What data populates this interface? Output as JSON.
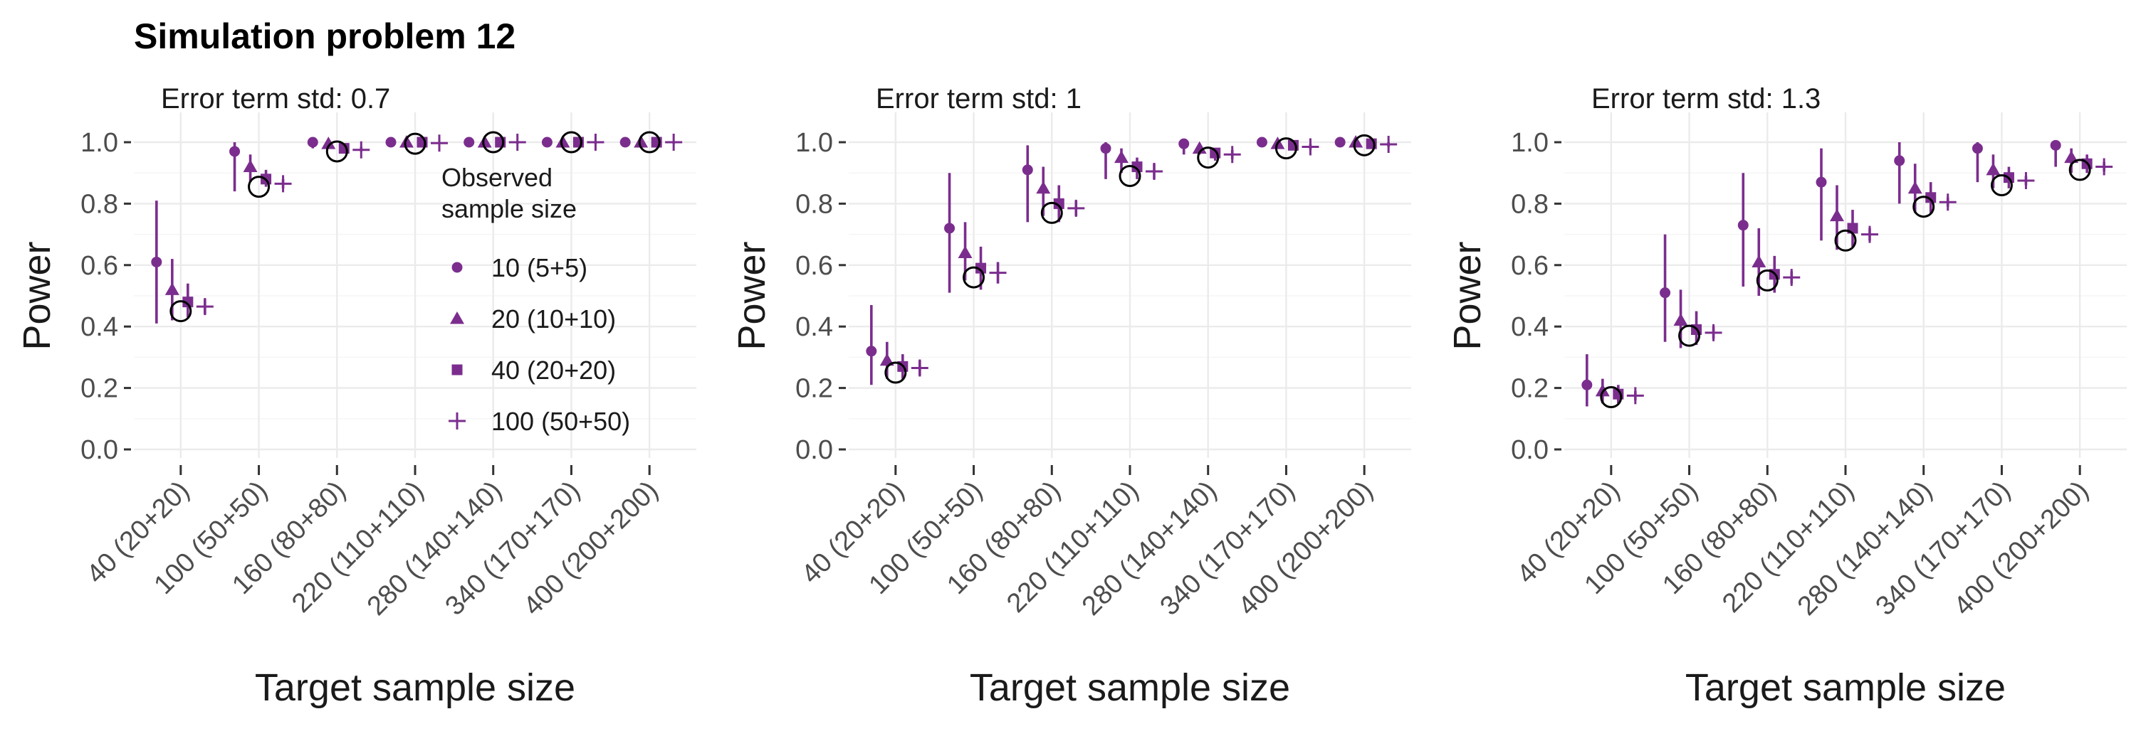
{
  "title": "Simulation problem 12",
  "colors": {
    "series": "#7b2d8e",
    "truth": "#000000",
    "grid": "#ebebeb"
  },
  "legend": {
    "title_line1": "Observed",
    "title_line2": "sample size",
    "placement": "inside first panel, right",
    "items": [
      {
        "label": "10 (5+5)",
        "shape": "circle"
      },
      {
        "label": "20 (10+10)",
        "shape": "triangle"
      },
      {
        "label": "40 (20+20)",
        "shape": "square"
      },
      {
        "label": "100 (50+50)",
        "shape": "plus"
      }
    ]
  },
  "chart_data": [
    {
      "type": "scatter",
      "subtitle": "Error term std: 0.7",
      "xlabel": "Target sample size",
      "ylabel": "Power",
      "ylim": [
        0,
        1
      ],
      "yticks": [
        "0.0",
        "0.2",
        "0.4",
        "0.6",
        "0.8",
        "1.0"
      ],
      "categories": [
        "40 (20+20)",
        "100 (50+50)",
        "160 (80+80)",
        "220 (110+110)",
        "280 (140+140)",
        "340 (170+170)",
        "400 (200+200)"
      ],
      "truth": [
        0.45,
        0.855,
        0.97,
        0.995,
        1.0,
        1.0,
        1.0
      ],
      "series": [
        {
          "name": "10 (5+5)",
          "values": [
            0.61,
            0.97,
            1.0,
            1.0,
            1.0,
            1.0,
            1.0
          ],
          "lower": [
            0.41,
            0.84,
            0.98,
            0.99,
            0.995,
            0.995,
            0.995
          ],
          "upper": [
            0.81,
            1.0,
            1.0,
            1.0,
            1.0,
            1.0,
            1.0
          ]
        },
        {
          "name": "20 (10+10)",
          "values": [
            0.52,
            0.92,
            0.995,
            1.0,
            1.0,
            1.0,
            1.0
          ],
          "lower": [
            0.42,
            0.87,
            0.98,
            0.995,
            0.995,
            0.995,
            0.995
          ],
          "upper": [
            0.62,
            0.96,
            1.0,
            1.0,
            1.0,
            1.0,
            1.0
          ]
        },
        {
          "name": "40 (20+20)",
          "values": [
            0.48,
            0.88,
            0.98,
            1.0,
            1.0,
            1.0,
            1.0
          ],
          "lower": [
            0.43,
            0.855,
            0.97,
            0.995,
            0.995,
            0.995,
            0.995
          ],
          "upper": [
            0.54,
            0.91,
            0.99,
            1.0,
            1.0,
            1.0,
            1.0
          ]
        },
        {
          "name": "100 (50+50)",
          "values": [
            0.465,
            0.865,
            0.975,
            0.997,
            1.0,
            1.0,
            1.0
          ],
          "lower": [
            0.44,
            0.85,
            0.97,
            0.995,
            0.995,
            0.995,
            0.995
          ],
          "upper": [
            0.49,
            0.88,
            0.985,
            1.0,
            1.0,
            1.0,
            1.0
          ]
        }
      ]
    },
    {
      "type": "scatter",
      "subtitle": "Error term std: 1",
      "xlabel": "Target sample size",
      "ylabel": "Power",
      "ylim": [
        0,
        1
      ],
      "yticks": [
        "0.0",
        "0.2",
        "0.4",
        "0.6",
        "0.8",
        "1.0"
      ],
      "categories": [
        "40 (20+20)",
        "100 (50+50)",
        "160 (80+80)",
        "220 (110+110)",
        "280 (140+140)",
        "340 (170+170)",
        "400 (200+200)"
      ],
      "truth": [
        0.25,
        0.56,
        0.77,
        0.89,
        0.95,
        0.98,
        0.99
      ],
      "series": [
        {
          "name": "10 (5+5)",
          "values": [
            0.32,
            0.72,
            0.91,
            0.98,
            0.995,
            1.0,
            1.0
          ],
          "lower": [
            0.21,
            0.51,
            0.74,
            0.88,
            0.96,
            0.99,
            0.995
          ],
          "upper": [
            0.47,
            0.9,
            0.99,
            1.0,
            1.0,
            1.0,
            1.0
          ]
        },
        {
          "name": "20 (10+10)",
          "values": [
            0.29,
            0.64,
            0.85,
            0.95,
            0.98,
            0.995,
            1.0
          ],
          "lower": [
            0.23,
            0.55,
            0.76,
            0.9,
            0.96,
            0.98,
            0.99
          ],
          "upper": [
            0.35,
            0.74,
            0.92,
            0.98,
            0.99,
            1.0,
            1.0
          ]
        },
        {
          "name": "40 (20+20)",
          "values": [
            0.27,
            0.59,
            0.8,
            0.92,
            0.965,
            0.99,
            0.995
          ],
          "lower": [
            0.23,
            0.52,
            0.74,
            0.88,
            0.94,
            0.975,
            0.985
          ],
          "upper": [
            0.31,
            0.66,
            0.86,
            0.95,
            0.98,
            0.995,
            1.0
          ]
        },
        {
          "name": "100 (50+50)",
          "values": [
            0.265,
            0.575,
            0.785,
            0.905,
            0.96,
            0.985,
            0.993
          ],
          "lower": [
            0.24,
            0.54,
            0.76,
            0.88,
            0.945,
            0.975,
            0.985
          ],
          "upper": [
            0.29,
            0.61,
            0.81,
            0.93,
            0.975,
            0.995,
            1.0
          ]
        }
      ]
    },
    {
      "type": "scatter",
      "subtitle": "Error term std: 1.3",
      "xlabel": "Target sample size",
      "ylabel": "Power",
      "ylim": [
        0,
        1
      ],
      "yticks": [
        "0.0",
        "0.2",
        "0.4",
        "0.6",
        "0.8",
        "1.0"
      ],
      "categories": [
        "40 (20+20)",
        "100 (50+50)",
        "160 (80+80)",
        "220 (110+110)",
        "280 (140+140)",
        "340 (170+170)",
        "400 (200+200)"
      ],
      "truth": [
        0.17,
        0.37,
        0.55,
        0.68,
        0.79,
        0.86,
        0.91
      ],
      "series": [
        {
          "name": "10 (5+5)",
          "values": [
            0.21,
            0.51,
            0.73,
            0.87,
            0.94,
            0.98,
            0.99
          ],
          "lower": [
            0.14,
            0.35,
            0.53,
            0.68,
            0.8,
            0.87,
            0.92
          ],
          "upper": [
            0.31,
            0.7,
            0.9,
            0.98,
            1.0,
            1.0,
            1.0
          ]
        },
        {
          "name": "20 (10+10)",
          "values": [
            0.19,
            0.42,
            0.61,
            0.76,
            0.85,
            0.91,
            0.95
          ],
          "lower": [
            0.15,
            0.33,
            0.5,
            0.65,
            0.77,
            0.85,
            0.9
          ],
          "upper": [
            0.23,
            0.52,
            0.72,
            0.86,
            0.93,
            0.96,
            0.98
          ]
        },
        {
          "name": "40 (20+20)",
          "values": [
            0.18,
            0.39,
            0.57,
            0.72,
            0.82,
            0.885,
            0.93
          ],
          "lower": [
            0.15,
            0.34,
            0.51,
            0.66,
            0.77,
            0.85,
            0.9
          ],
          "upper": [
            0.21,
            0.45,
            0.63,
            0.78,
            0.87,
            0.92,
            0.96
          ]
        },
        {
          "name": "100 (50+50)",
          "values": [
            0.175,
            0.38,
            0.56,
            0.7,
            0.805,
            0.875,
            0.92
          ],
          "lower": [
            0.16,
            0.36,
            0.54,
            0.68,
            0.79,
            0.86,
            0.905
          ],
          "upper": [
            0.19,
            0.4,
            0.58,
            0.72,
            0.82,
            0.89,
            0.935
          ]
        }
      ]
    }
  ]
}
